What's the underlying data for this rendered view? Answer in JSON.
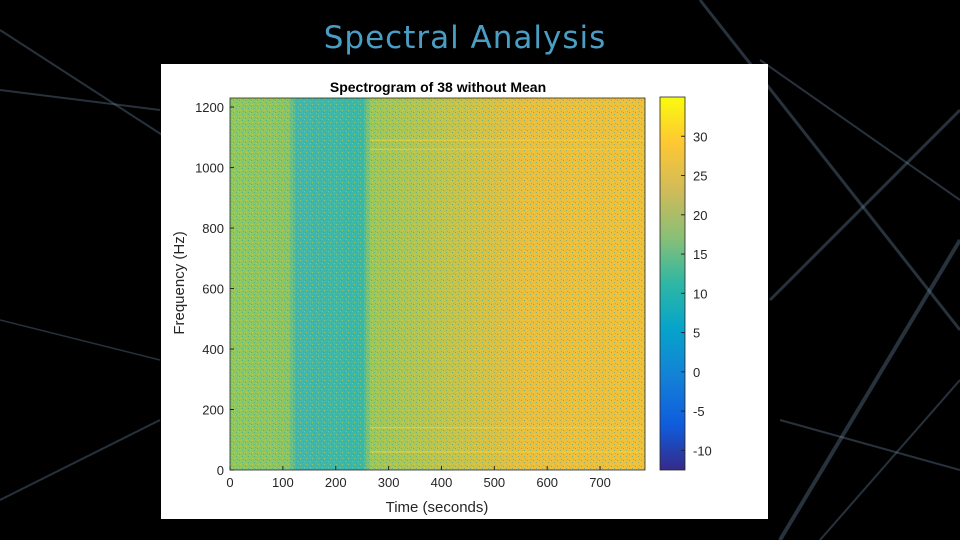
{
  "slide": {
    "title": "Spectral Analysis",
    "background_color": "#000000",
    "title_color": "#4a9ec4"
  },
  "chart_data": {
    "type": "heatmap",
    "title": "Spectrogram of 38 without Mean",
    "xlabel": "Time (seconds)",
    "ylabel": "Frequency (Hz)",
    "xlim": [
      0,
      785
    ],
    "ylim": [
      0,
      1230
    ],
    "xticks": [
      0,
      100,
      200,
      300,
      400,
      500,
      600,
      700
    ],
    "yticks": [
      0,
      200,
      400,
      600,
      800,
      1000,
      1200
    ],
    "colorbar": {
      "colormap": "parula",
      "range": [
        -12.5,
        35
      ],
      "ticks": [
        -10,
        -5,
        0,
        5,
        10,
        15,
        20,
        25,
        30
      ]
    },
    "value_range_shown": [
      12,
      30
    ],
    "description_regions": [
      {
        "time_range": [
          0,
          110
        ],
        "freq_range": [
          0,
          1230
        ],
        "level": 18
      },
      {
        "time_range": [
          110,
          260
        ],
        "freq_range": [
          0,
          1230
        ],
        "level": 13
      },
      {
        "time_range": [
          260,
          500
        ],
        "freq_range": [
          0,
          1230
        ],
        "level": 21
      },
      {
        "time_range": [
          500,
          785
        ],
        "freq_range": [
          0,
          1230
        ],
        "level": 25
      }
    ]
  }
}
